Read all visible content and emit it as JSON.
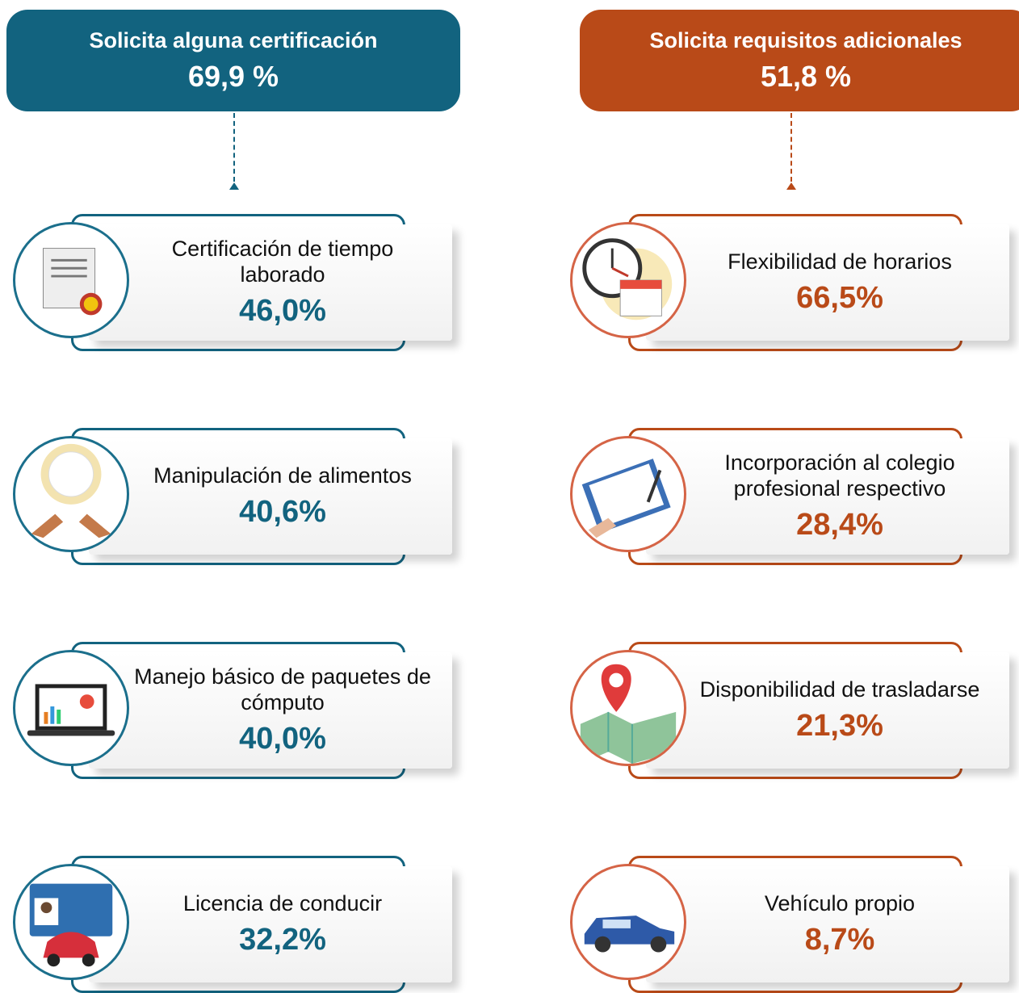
{
  "columns": [
    {
      "title": "Solicita alguna certificación",
      "value": "69,9 %",
      "items": [
        {
          "label": "Certificación de tiempo laborado",
          "value": "46,0%"
        },
        {
          "label": "Manipulación de alimentos",
          "value": "40,6%"
        },
        {
          "label": "Manejo básico de paquetes de cómputo",
          "value": "40,0%"
        },
        {
          "label": "Licencia de conducir",
          "value": "32,2%"
        }
      ]
    },
    {
      "title": "Solicita requisitos adicionales",
      "value": "51,8 %",
      "items": [
        {
          "label": "Flexibilidad de horarios",
          "value": "66,5%"
        },
        {
          "label": "Incorporación al colegio profesional respectivo",
          "value": "28,4%"
        },
        {
          "label": "Disponibilidad de trasladarse",
          "value": "21,3%"
        },
        {
          "label": "Vehículo propio",
          "value": "8,7%"
        }
      ]
    }
  ]
}
